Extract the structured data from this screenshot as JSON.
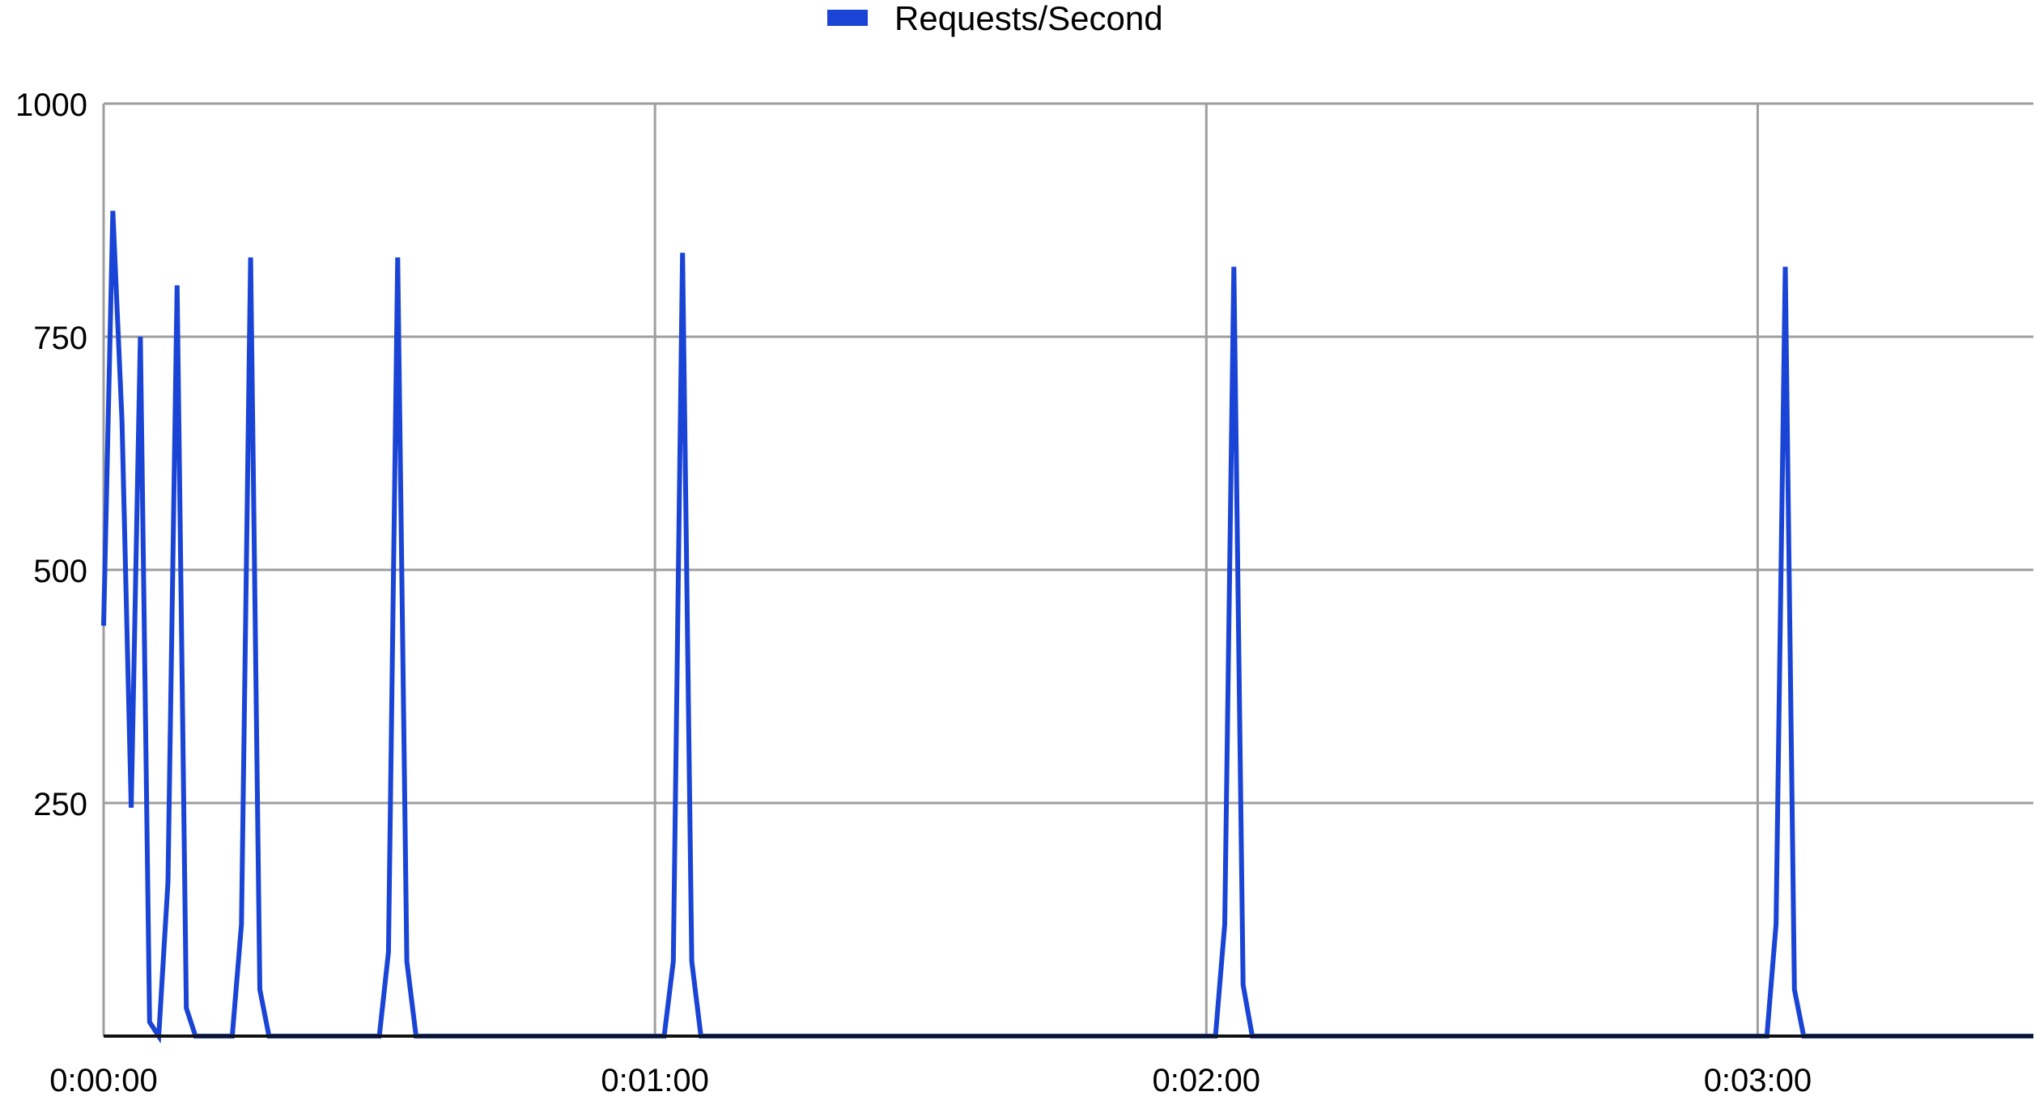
{
  "chart_data": {
    "type": "line",
    "title": "",
    "xlabel": "",
    "ylabel": "",
    "legend": {
      "position": "top",
      "entries": [
        "Requests/Second"
      ]
    },
    "grid": true,
    "x_unit": "time h:mm:ss",
    "xlim": [
      "0:00:00",
      "0:03:30"
    ],
    "ylim": [
      0,
      1000
    ],
    "x_ticks": [
      "0:00:00",
      "0:01:00",
      "0:02:00",
      "0:03:00"
    ],
    "y_ticks": [
      "250",
      "500",
      "750",
      "1000"
    ],
    "series": [
      {
        "name": "Requests/Second",
        "color": "#1a44d6",
        "points": [
          [
            "0:00:00",
            440
          ],
          [
            "0:00:01",
            885
          ],
          [
            "0:00:02",
            660
          ],
          [
            "0:00:03",
            245
          ],
          [
            "0:00:04",
            750
          ],
          [
            "0:00:05",
            15
          ],
          [
            "0:00:06",
            0
          ],
          [
            "0:00:07",
            165
          ],
          [
            "0:00:08",
            805
          ],
          [
            "0:00:09",
            30
          ],
          [
            "0:00:10",
            0
          ],
          [
            "0:00:11",
            0
          ],
          [
            "0:00:12",
            0
          ],
          [
            "0:00:13",
            0
          ],
          [
            "0:00:14",
            0
          ],
          [
            "0:00:15",
            120
          ],
          [
            "0:00:16",
            835
          ],
          [
            "0:00:17",
            50
          ],
          [
            "0:00:18",
            0
          ],
          [
            "0:00:19",
            0
          ],
          [
            "0:00:20",
            0
          ],
          [
            "0:00:21",
            0
          ],
          [
            "0:00:22",
            0
          ],
          [
            "0:00:23",
            0
          ],
          [
            "0:00:24",
            0
          ],
          [
            "0:00:25",
            0
          ],
          [
            "0:00:26",
            0
          ],
          [
            "0:00:27",
            0
          ],
          [
            "0:00:28",
            0
          ],
          [
            "0:00:29",
            0
          ],
          [
            "0:00:30",
            0
          ],
          [
            "0:00:31",
            90
          ],
          [
            "0:00:32",
            835
          ],
          [
            "0:00:33",
            80
          ],
          [
            "0:00:34",
            0
          ],
          [
            "0:00:35",
            0
          ],
          [
            "0:01:01",
            0
          ],
          [
            "0:01:02",
            80
          ],
          [
            "0:01:03",
            840
          ],
          [
            "0:01:04",
            80
          ],
          [
            "0:01:05",
            0
          ],
          [
            "0:02:01",
            0
          ],
          [
            "0:02:02",
            120
          ],
          [
            "0:02:03",
            825
          ],
          [
            "0:02:04",
            55
          ],
          [
            "0:02:05",
            0
          ],
          [
            "0:03:01",
            0
          ],
          [
            "0:03:02",
            120
          ],
          [
            "0:03:03",
            825
          ],
          [
            "0:03:04",
            50
          ],
          [
            "0:03:05",
            0
          ],
          [
            "0:03:30",
            0
          ]
        ]
      }
    ]
  }
}
